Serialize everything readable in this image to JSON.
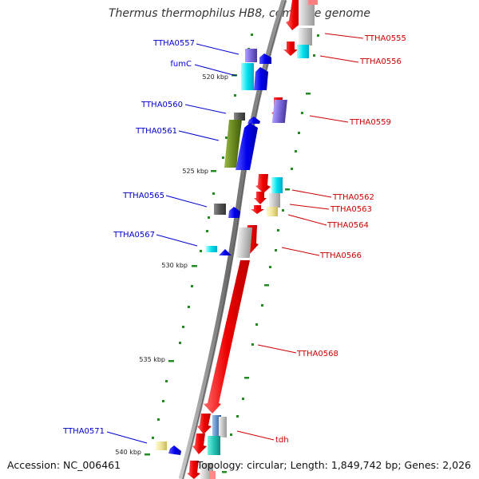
{
  "title": "Thermus thermophilus HB8, complete genome",
  "footer": {
    "accession": "Accession: NC_006461",
    "summary": "Topology: circular; Length: 1,849,742 bp; Genes: 2,026"
  },
  "colors": {
    "backbone": "#7a7a7a",
    "left_label": "#0000cc",
    "right_label": "#cc0000",
    "tick": "#228B22",
    "forward_arrow": "#ee0000",
    "reverse_arrow": "#0000ee"
  },
  "scale_labels": [
    "520 kbp",
    "525 kbp",
    "530 kbp",
    "535 kbp",
    "540 kbp"
  ],
  "left_genes": [
    "TTHA0557",
    "fumC",
    "TTHA0560",
    "TTHA0561",
    "TTHA0565",
    "TTHA0567",
    "TTHA0571"
  ],
  "right_genes": [
    "TTHA0555",
    "TTHA0556",
    "TTHA0559",
    "TTHA0562",
    "TTHA0563",
    "TTHA0564",
    "TTHA0566",
    "TTHA0568",
    "tdh"
  ]
}
